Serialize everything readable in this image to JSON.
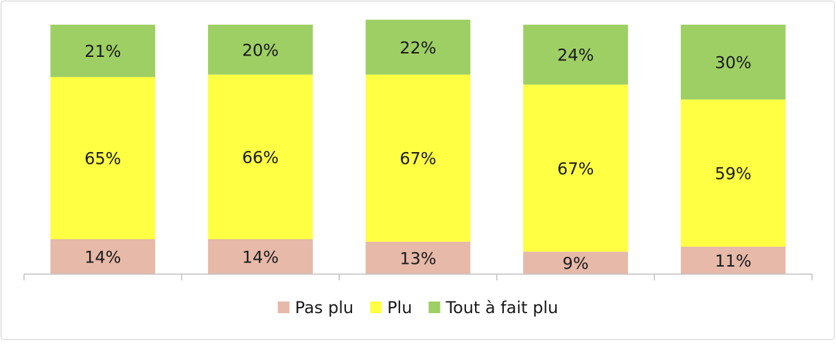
{
  "chart_data": {
    "type": "stacked_bar",
    "categories": [
      null,
      null,
      null,
      null,
      null
    ],
    "series": [
      {
        "name": "Pas plu",
        "color": "#e6b9a9",
        "values": [
          14,
          14,
          13,
          9,
          11
        ],
        "value_labels": [
          "14%",
          "14%",
          "13%",
          "9%",
          "11%"
        ]
      },
      {
        "name": "Plu",
        "color": "#ffff43",
        "values": [
          65,
          66,
          67,
          67,
          59
        ],
        "value_labels": [
          "65%",
          "66%",
          "67%",
          "67%",
          "59%"
        ]
      },
      {
        "name": "Tout à fait plu",
        "color": "#9ecf64",
        "values": [
          21,
          20,
          22,
          24,
          30
        ],
        "value_labels": [
          "21%",
          "20%",
          "22%",
          "24%",
          "30%"
        ]
      }
    ],
    "ylim": [
      0,
      100
    ],
    "legend": "bottom"
  }
}
